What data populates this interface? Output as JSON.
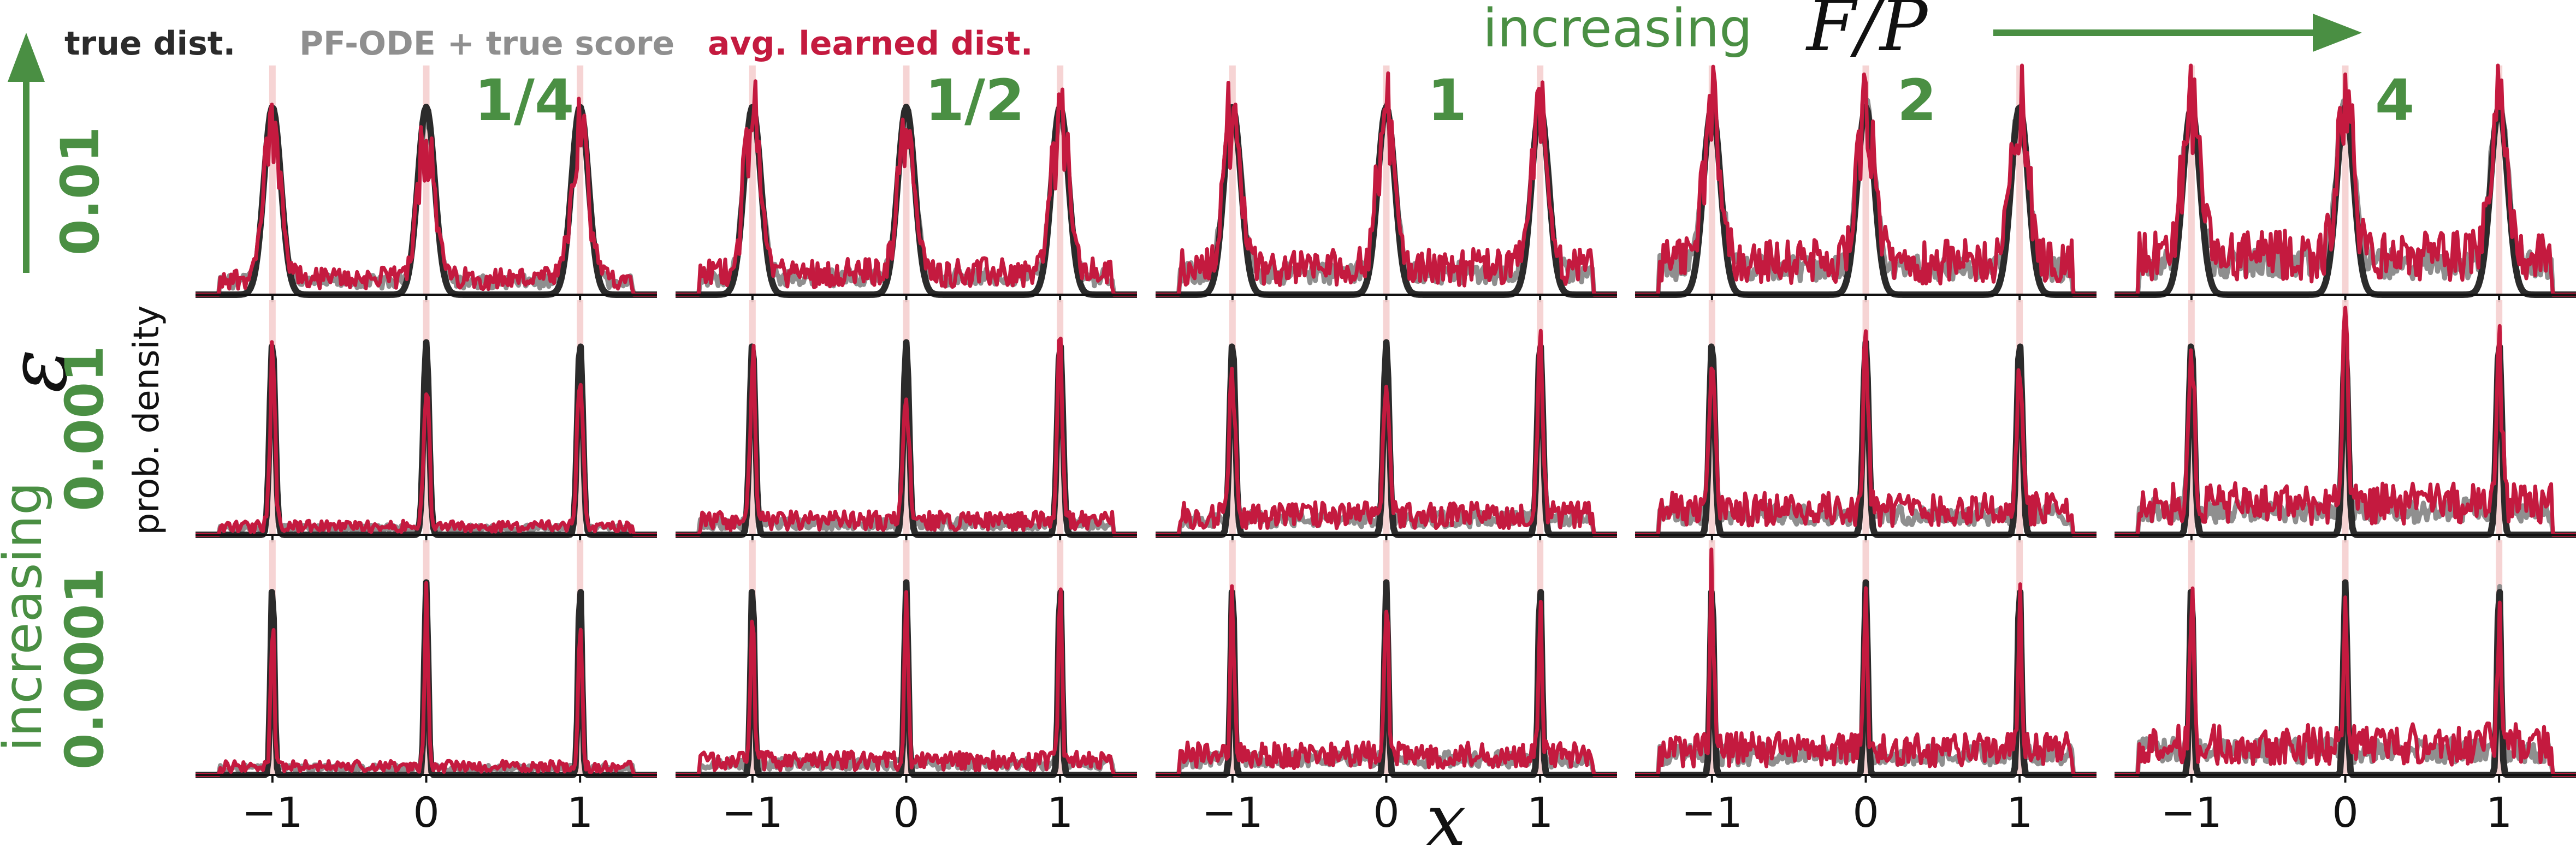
{
  "legend": {
    "true_dist": "true dist.",
    "pf_ode": "PF-ODE + true score",
    "avg_learned": "avg. learned dist."
  },
  "colors": {
    "true": "#2b2b2b",
    "pf": "#8f8f8f",
    "learned": "#c41a3f",
    "learned_fill": "#f5cfcf",
    "accent_green": "#4a8f43"
  },
  "header": {
    "increasing": "increasing",
    "fp_symbol": "F/P"
  },
  "side": {
    "epsilon_symbol": "ε",
    "increasing": "increasing",
    "ylabel": "prob. density"
  },
  "axis": {
    "xlabel": "x",
    "ticks": [
      "−1",
      "0",
      "1"
    ]
  },
  "chart_data": {
    "type": "line",
    "grid": false,
    "legend_placement": "top-left",
    "columns": [
      {
        "ratio_label": "1/4",
        "ratio": 0.25
      },
      {
        "ratio_label": "1/2",
        "ratio": 0.5
      },
      {
        "ratio_label": "1",
        "ratio": 1
      },
      {
        "ratio_label": "2",
        "ratio": 2
      },
      {
        "ratio_label": "4",
        "ratio": 4
      }
    ],
    "rows": [
      {
        "epsilon_label": "0.01",
        "epsilon": 0.01
      },
      {
        "epsilon_label": "0.001",
        "epsilon": 0.001
      },
      {
        "epsilon_label": "0.0001",
        "epsilon": 0.0001
      }
    ],
    "xlim": [
      -1.5,
      1.5
    ],
    "x_ticks": [
      -1,
      0,
      1
    ],
    "true_dist_modes": [
      -1,
      0,
      1
    ],
    "series": [
      {
        "name": "true dist."
      },
      {
        "name": "PF-ODE + true score"
      },
      {
        "name": "avg. learned dist."
      }
    ]
  }
}
